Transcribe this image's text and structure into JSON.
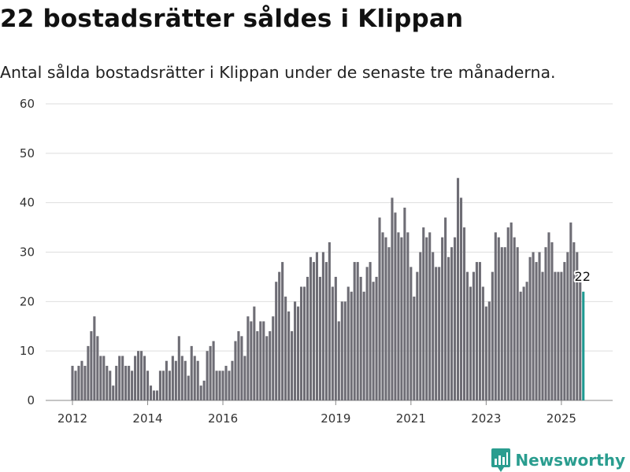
{
  "title": "22 bostadsrätter såldes i Klippan",
  "subtitle": "Antal sålda bostadsrätter i Klippan under de senaste tre månaderna.",
  "brand": {
    "name": "Newsworthy",
    "logo": "newsworthy-logo-icon",
    "color": "#2a9d8f"
  },
  "colors": {
    "bar": "#6e6d75",
    "highlight": "#1f9a92",
    "grid": "#dedede"
  },
  "chart_data": {
    "type": "bar",
    "x_start": "2012-01",
    "x_interval": "month",
    "ylim": [
      0,
      60
    ],
    "yticks": [
      0,
      10,
      20,
      30,
      40,
      50,
      60
    ],
    "xticks": [
      "2012",
      "2014",
      "2016",
      "2019",
      "2021",
      "2023",
      "2025"
    ],
    "grid": true,
    "highlight": {
      "index": 163,
      "label": "22"
    },
    "values": [
      7,
      6,
      7,
      8,
      7,
      11,
      14,
      17,
      13,
      9,
      9,
      7,
      6,
      3,
      7,
      9,
      9,
      7,
      7,
      6,
      9,
      10,
      10,
      9,
      6,
      3,
      2,
      2,
      6,
      6,
      8,
      6,
      9,
      8,
      13,
      9,
      8,
      5,
      11,
      9,
      8,
      3,
      4,
      10,
      11,
      12,
      6,
      6,
      6,
      7,
      6,
      8,
      12,
      14,
      13,
      9,
      17,
      16,
      19,
      14,
      16,
      16,
      13,
      14,
      17,
      24,
      26,
      28,
      21,
      18,
      14,
      20,
      19,
      23,
      23,
      25,
      29,
      28,
      30,
      25,
      30,
      28,
      32,
      23,
      25,
      16,
      20,
      20,
      23,
      22,
      28,
      28,
      25,
      22,
      27,
      28,
      24,
      25,
      37,
      34,
      33,
      31,
      41,
      38,
      34,
      33,
      39,
      34,
      27,
      21,
      26,
      30,
      35,
      33,
      34,
      30,
      27,
      27,
      33,
      37,
      29,
      31,
      33,
      45,
      41,
      35,
      26,
      23,
      26,
      28,
      28,
      23,
      19,
      20,
      26,
      34,
      33,
      31,
      31,
      35,
      36,
      33,
      31,
      22,
      23,
      24,
      29,
      30,
      28,
      30,
      26,
      31,
      34,
      32,
      26,
      26,
      26,
      28,
      30,
      36,
      32,
      30,
      24,
      22
    ]
  }
}
